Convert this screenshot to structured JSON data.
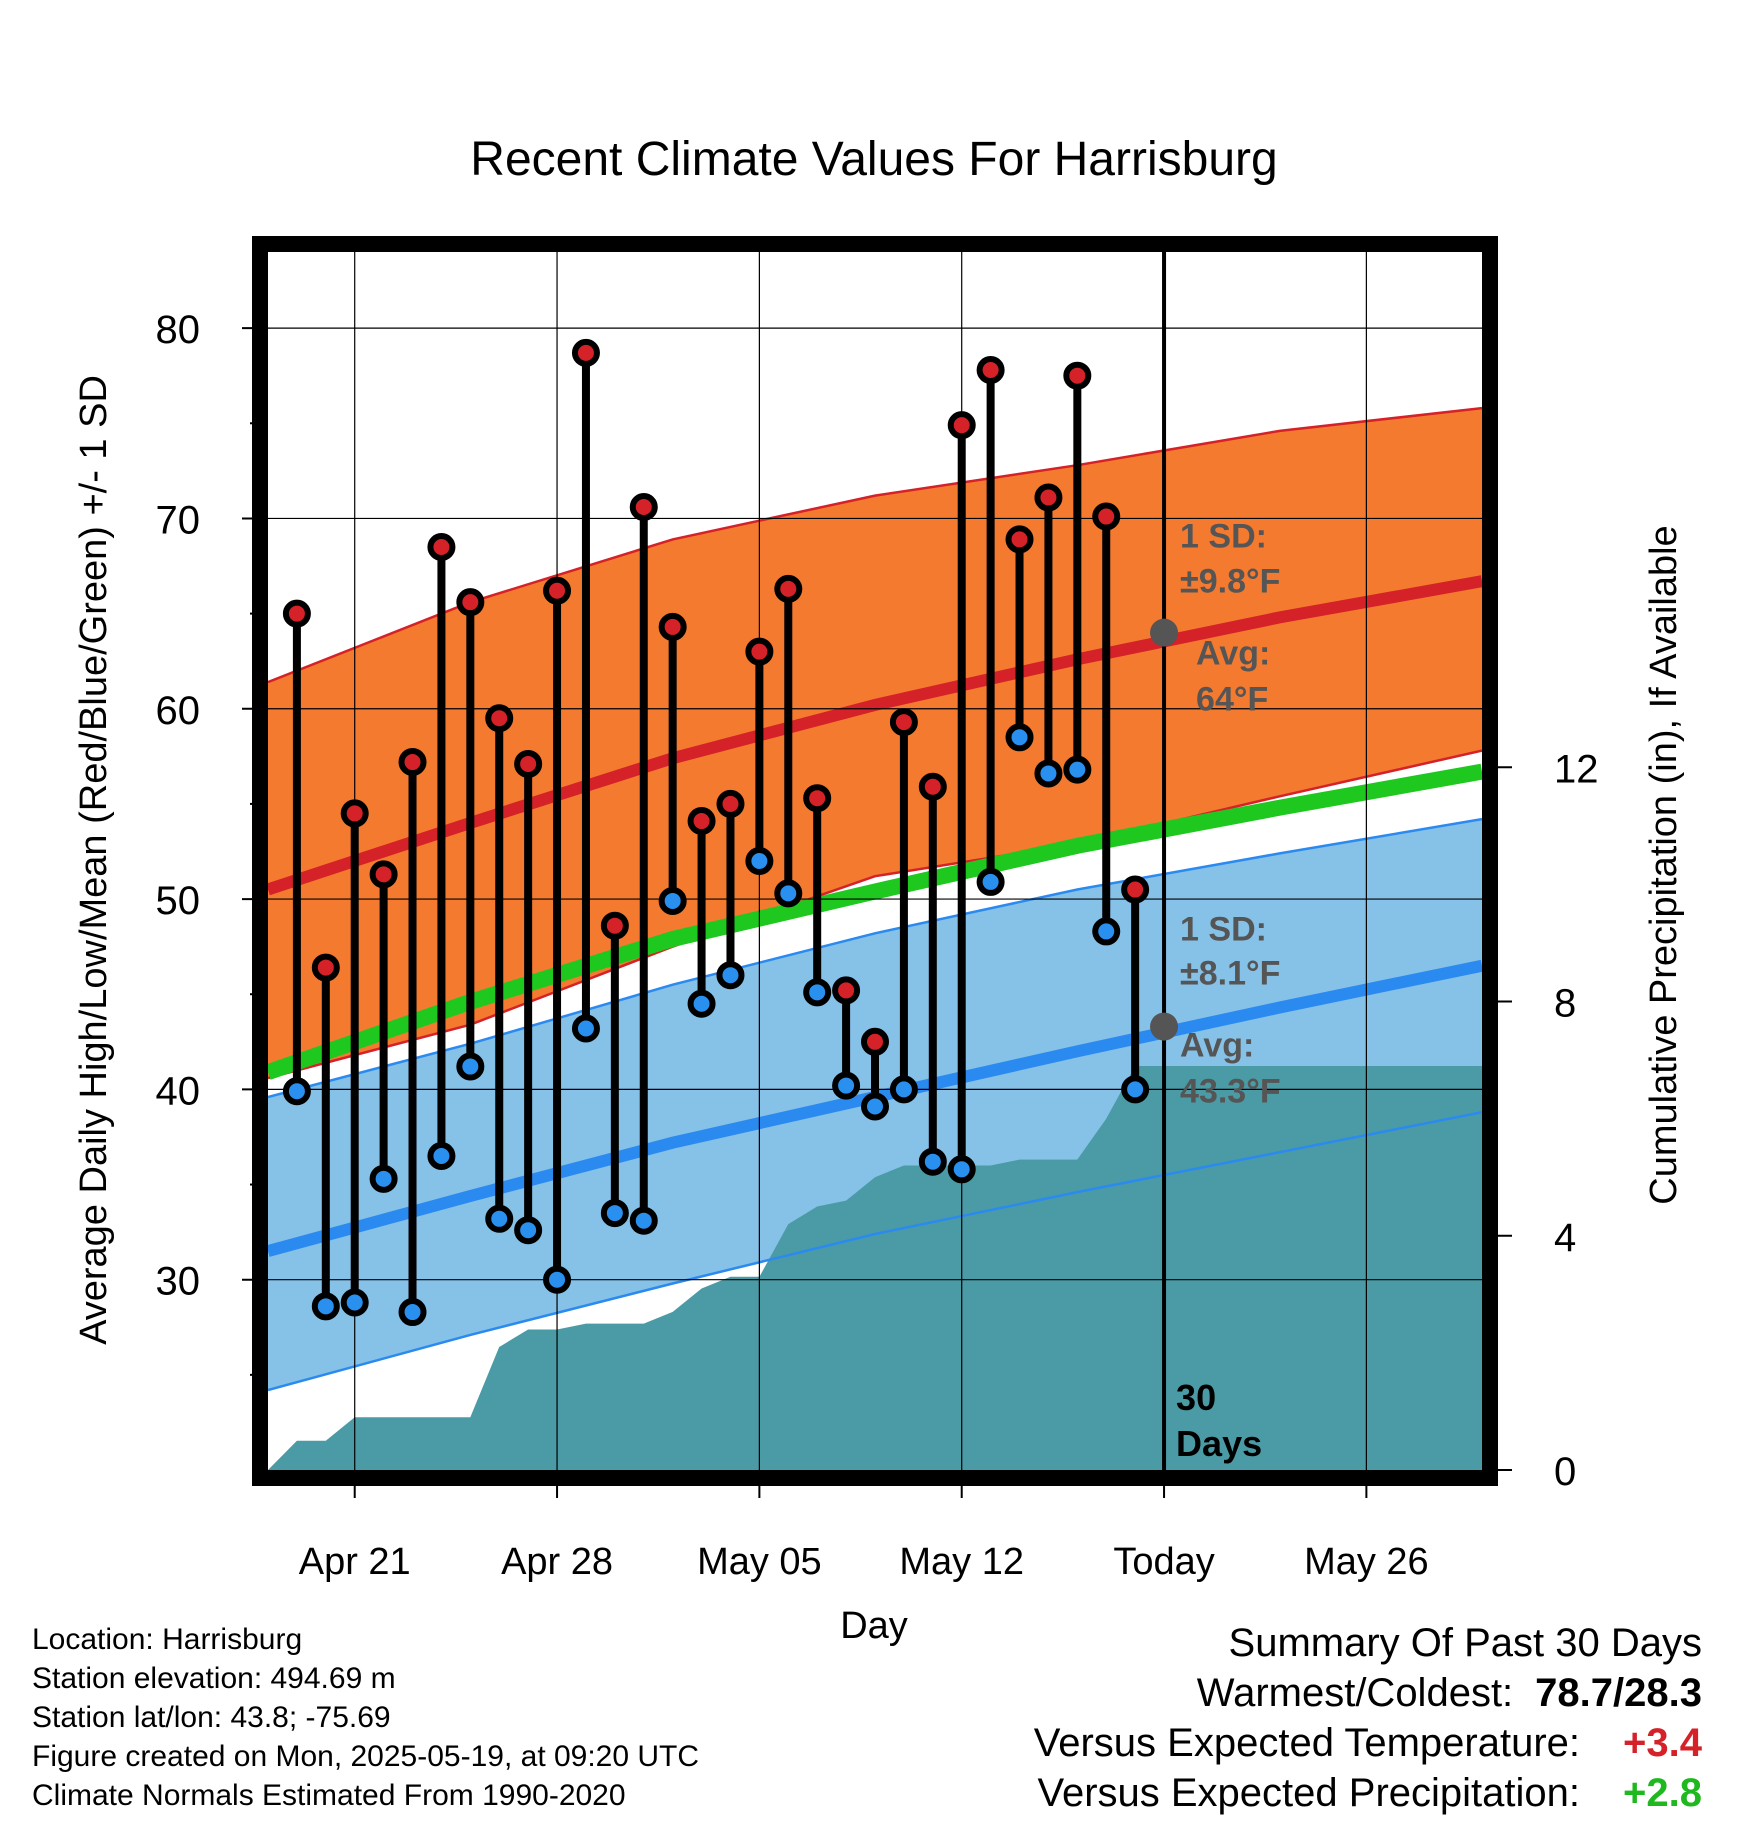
{
  "chart_data": {
    "type": "line",
    "title": "Recent Climate Values For Harrisburg",
    "xlabel": "Day",
    "ylabel_left": "Average Daily High/Low/Mean (Red/Blue/Green) +/- 1 SD",
    "ylabel_right": "Cumulative Precipitation (in), If Available",
    "ylim_left": [
      20,
      84
    ],
    "ylim_right": [
      0,
      20.8
    ],
    "xlim": [
      "2025-04-18",
      "2025-05-30"
    ],
    "y_ticks_left": [
      "30",
      "40",
      "50",
      "60",
      "70",
      "80"
    ],
    "y_ticks_right": [
      "0",
      "4",
      "8",
      "12"
    ],
    "x_ticks": [
      {
        "date": "2025-04-21",
        "label": "Apr 21"
      },
      {
        "date": "2025-04-28",
        "label": "Apr 28"
      },
      {
        "date": "2025-05-05",
        "label": "May 05"
      },
      {
        "date": "2025-05-12",
        "label": "May 12"
      },
      {
        "date": "2025-05-19",
        "label": "Today"
      },
      {
        "date": "2025-05-26",
        "label": "May 26"
      }
    ],
    "today": "2025-05-19",
    "today_label": [
      "30",
      "Days"
    ],
    "normals": {
      "dates": [
        "2025-04-18",
        "2025-04-25",
        "2025-05-02",
        "2025-05-09",
        "2025-05-16",
        "2025-05-23",
        "2025-05-30"
      ],
      "high_mean": [
        50.5,
        54.0,
        57.4,
        60.2,
        62.6,
        64.8,
        66.7
      ],
      "high_upper": [
        61.4,
        65.6,
        68.9,
        71.2,
        72.8,
        74.6,
        75.8
      ],
      "high_lower": [
        40.6,
        43.4,
        47.5,
        51.2,
        52.9,
        55.4,
        57.8
      ],
      "low_mean": [
        31.5,
        34.4,
        37.2,
        39.6,
        42.0,
        44.3,
        46.5
      ],
      "low_upper": [
        39.6,
        42.4,
        45.5,
        48.2,
        50.5,
        52.4,
        54.2
      ],
      "low_lower": [
        24.2,
        27.1,
        29.8,
        32.4,
        34.6,
        36.7,
        38.8
      ],
      "daily_mean": [
        40.9,
        44.6,
        47.9,
        50.4,
        52.8,
        54.8,
        56.7
      ]
    },
    "high_annotation": {
      "sd_label": "1 SD:",
      "sd_value": "±9.8°F",
      "avg_label": "Avg:",
      "avg_value": "64°F",
      "avg": 64.0
    },
    "low_annotation": {
      "sd_label": "1 SD:",
      "sd_value": "±8.1°F",
      "avg_label": "Avg:",
      "avg_value": "43.3°F",
      "avg": 43.3
    },
    "observed": {
      "dates": [
        "2025-04-19",
        "2025-04-20",
        "2025-04-21",
        "2025-04-22",
        "2025-04-23",
        "2025-04-24",
        "2025-04-25",
        "2025-04-26",
        "2025-04-27",
        "2025-04-28",
        "2025-04-29",
        "2025-04-30",
        "2025-05-01",
        "2025-05-02",
        "2025-05-03",
        "2025-05-04",
        "2025-05-05",
        "2025-05-06",
        "2025-05-07",
        "2025-05-08",
        "2025-05-09",
        "2025-05-10",
        "2025-05-11",
        "2025-05-12",
        "2025-05-13",
        "2025-05-14",
        "2025-05-15",
        "2025-05-16",
        "2025-05-17",
        "2025-05-18"
      ],
      "high": [
        65.0,
        46.4,
        54.5,
        51.3,
        57.2,
        68.5,
        65.6,
        59.5,
        57.1,
        66.2,
        78.7,
        48.6,
        70.6,
        64.3,
        54.1,
        55.0,
        63.0,
        66.3,
        55.3,
        45.2,
        42.5,
        59.3,
        55.9,
        74.9,
        77.8,
        68.9,
        71.1,
        77.5,
        70.1,
        50.5
      ],
      "low": [
        39.9,
        28.6,
        28.8,
        35.3,
        28.3,
        36.5,
        41.2,
        33.2,
        32.6,
        30.0,
        43.2,
        33.5,
        33.1,
        49.9,
        44.5,
        46.0,
        52.0,
        50.3,
        45.1,
        40.2,
        39.1,
        40.0,
        36.2,
        35.8,
        50.9,
        58.5,
        56.6,
        56.8,
        48.3,
        40.0
      ]
    },
    "precip_cumulative": {
      "dates": [
        "2025-04-18",
        "2025-04-19",
        "2025-04-20",
        "2025-04-21",
        "2025-04-22",
        "2025-04-23",
        "2025-04-24",
        "2025-04-25",
        "2025-04-26",
        "2025-04-27",
        "2025-04-28",
        "2025-04-29",
        "2025-04-30",
        "2025-05-01",
        "2025-05-02",
        "2025-05-03",
        "2025-05-04",
        "2025-05-05",
        "2025-05-06",
        "2025-05-07",
        "2025-05-08",
        "2025-05-09",
        "2025-05-10",
        "2025-05-11",
        "2025-05-12",
        "2025-05-13",
        "2025-05-14",
        "2025-05-15",
        "2025-05-16",
        "2025-05-17",
        "2025-05-18",
        "2025-05-30"
      ],
      "values": [
        0.0,
        0.5,
        0.5,
        0.9,
        0.9,
        0.9,
        0.9,
        0.9,
        2.1,
        2.4,
        2.4,
        2.5,
        2.5,
        2.5,
        2.7,
        3.1,
        3.3,
        3.3,
        4.2,
        4.5,
        4.6,
        5.0,
        5.2,
        5.2,
        5.2,
        5.2,
        5.3,
        5.3,
        5.3,
        6.0,
        6.9,
        6.9
      ]
    },
    "colors": {
      "high_band": "#F47A30",
      "high_line": "#D42228",
      "low_band": "#86C1E8",
      "low_line": "#2A8AF0",
      "mean_line": "#1FC81F",
      "precip": "#4A9BA5",
      "high_dot": "#D42228",
      "low_dot": "#2A90F0",
      "annotation": "#555555"
    },
    "grid": true
  },
  "footer": {
    "location": "Location: Harrisburg",
    "elevation": "Station elevation: 494.69 m",
    "latlon": "Station lat/lon: 43.8; -75.69",
    "created": "Figure created on Mon, 2025-05-19, at 09:20 UTC",
    "normals": "Climate Normals Estimated From 1990-2020"
  },
  "summary": {
    "title": "Summary Of Past 30 Days",
    "warm_cold_label": "Warmest/Coldest:",
    "warm_cold_value": "78.7/28.3",
    "temp_label": "Versus Expected Temperature:",
    "temp_value": "+3.4",
    "temp_color": "#D42228",
    "precip_label": "Versus Expected Precipitation:",
    "precip_value": "+2.8",
    "precip_color": "#1FB81F"
  }
}
